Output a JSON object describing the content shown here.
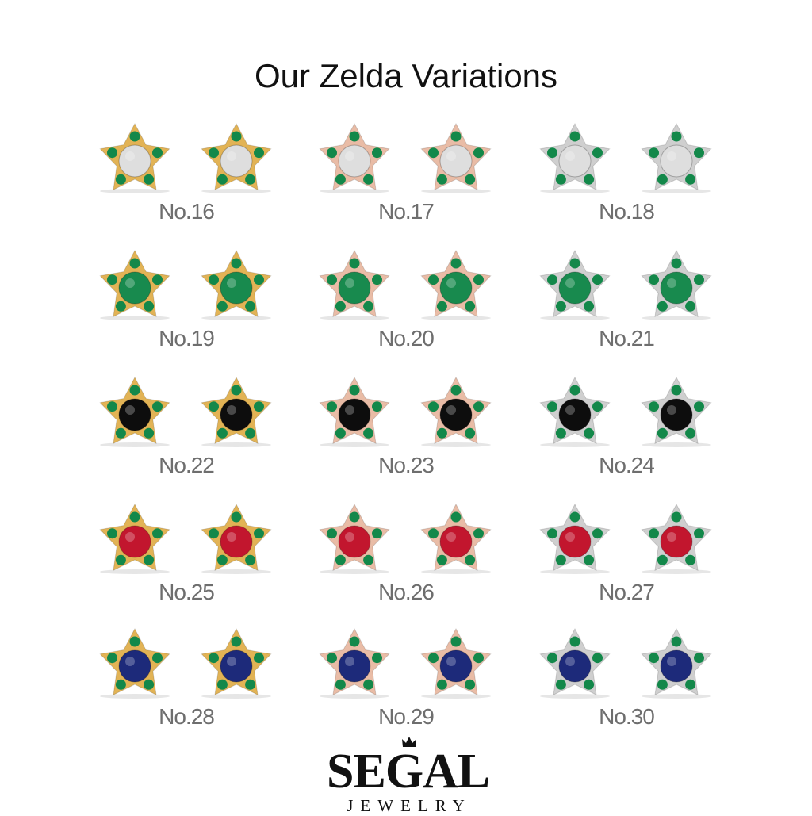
{
  "title": "Our Zelda Variations",
  "colors": {
    "metals": {
      "yellow": "#e2b355",
      "rose": "#e9bca6",
      "white": "#cfcfcf"
    },
    "stones": {
      "diamond": "#dedede",
      "emerald": "#188a4e",
      "black": "#0d0d0d",
      "ruby": "#c2162e",
      "sapphire": "#1d2a7a"
    },
    "accent_stone": "#13884a",
    "label": "#6e6e6e"
  },
  "variations": [
    {
      "label": "No.16",
      "metal": "yellow",
      "center": "diamond"
    },
    {
      "label": "No.17",
      "metal": "rose",
      "center": "diamond"
    },
    {
      "label": "No.18",
      "metal": "white",
      "center": "diamond"
    },
    {
      "label": "No.19",
      "metal": "yellow",
      "center": "emerald"
    },
    {
      "label": "No.20",
      "metal": "rose",
      "center": "emerald"
    },
    {
      "label": "No.21",
      "metal": "white",
      "center": "emerald"
    },
    {
      "label": "No.22",
      "metal": "yellow",
      "center": "black"
    },
    {
      "label": "No.23",
      "metal": "rose",
      "center": "black"
    },
    {
      "label": "No.24",
      "metal": "white",
      "center": "black"
    },
    {
      "label": "No.25",
      "metal": "yellow",
      "center": "ruby"
    },
    {
      "label": "No.26",
      "metal": "rose",
      "center": "ruby"
    },
    {
      "label": "No.27",
      "metal": "white",
      "center": "ruby"
    },
    {
      "label": "No.28",
      "metal": "yellow",
      "center": "sapphire"
    },
    {
      "label": "No.29",
      "metal": "rose",
      "center": "sapphire"
    },
    {
      "label": "No.30",
      "metal": "white",
      "center": "sapphire"
    }
  ],
  "logo": {
    "brand": "SEGAL",
    "sub": "JEWELRY"
  }
}
